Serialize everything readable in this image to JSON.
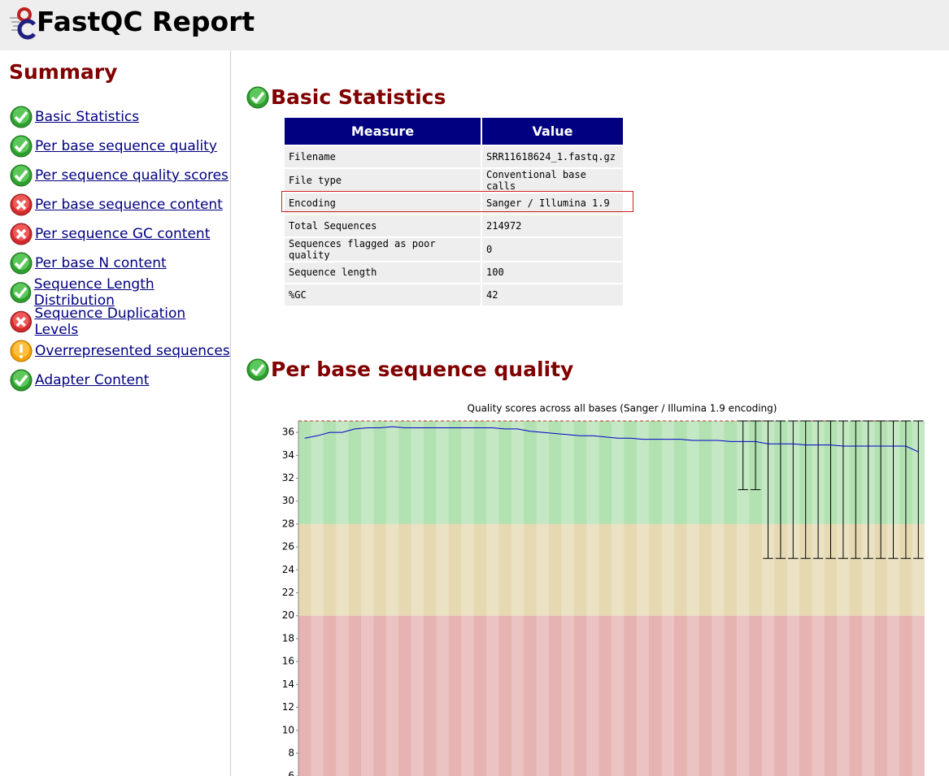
{
  "header": {
    "title": "FastQC Report"
  },
  "summary": {
    "title": "Summary",
    "items": [
      {
        "label": "Basic Statistics",
        "status": "pass"
      },
      {
        "label": "Per base sequence quality",
        "status": "pass"
      },
      {
        "label": "Per sequence quality scores",
        "status": "pass"
      },
      {
        "label": "Per base sequence content",
        "status": "fail"
      },
      {
        "label": "Per sequence GC content",
        "status": "fail"
      },
      {
        "label": "Per base N content",
        "status": "pass"
      },
      {
        "label": "Sequence Length Distribution",
        "status": "pass"
      },
      {
        "label": "Sequence Duplication Levels",
        "status": "fail"
      },
      {
        "label": "Overrepresented sequences",
        "status": "warn"
      },
      {
        "label": "Adapter Content",
        "status": "pass"
      }
    ]
  },
  "basic_statistics": {
    "title": "Basic Statistics",
    "status": "pass",
    "columns": [
      "Measure",
      "Value"
    ],
    "rows": [
      [
        "Filename",
        "SRR11618624_1.fastq.gz"
      ],
      [
        "File type",
        "Conventional base calls"
      ],
      [
        "Encoding",
        "Sanger / Illumina 1.9"
      ],
      [
        "Total Sequences",
        "214972"
      ],
      [
        "Sequences flagged as poor quality",
        "0"
      ],
      [
        "Sequence length",
        "100"
      ],
      [
        "%GC",
        "42"
      ]
    ]
  },
  "quality_section": {
    "title": "Per base sequence quality",
    "status": "pass"
  },
  "chart_data": {
    "type": "boxplot",
    "title": "Quality scores across all bases (Sanger / Illumina 1.9 encoding)",
    "categories": [
      null,
      null,
      null,
      null,
      null,
      null,
      null,
      null,
      null,
      null,
      null,
      null,
      null,
      null,
      null,
      null,
      null,
      null,
      null,
      null,
      null,
      null,
      null,
      null,
      null,
      null,
      null,
      null,
      null,
      null,
      null,
      null,
      null,
      null,
      null,
      null,
      null,
      null,
      null,
      null,
      null,
      null,
      null,
      null,
      null,
      null,
      null,
      null,
      null,
      null
    ],
    "mean": {
      "color": "#0000cc",
      "values": [
        35.5,
        35.7,
        36.0,
        36.0,
        36.3,
        36.4,
        36.4,
        36.5,
        36.4,
        36.4,
        36.4,
        36.4,
        36.4,
        36.4,
        36.4,
        36.4,
        36.3,
        36.3,
        36.1,
        36.0,
        35.9,
        35.8,
        35.7,
        35.7,
        35.6,
        35.5,
        35.5,
        35.4,
        35.4,
        35.4,
        35.4,
        35.3,
        35.3,
        35.3,
        35.2,
        35.2,
        35.2,
        35.0,
        35.0,
        35.0,
        34.9,
        34.9,
        34.9,
        34.8,
        34.8,
        34.8,
        34.8,
        34.8,
        34.8,
        34.3
      ]
    },
    "whisker_low": [
      null,
      null,
      null,
      null,
      null,
      null,
      null,
      null,
      null,
      null,
      null,
      null,
      null,
      null,
      null,
      null,
      null,
      null,
      null,
      null,
      null,
      null,
      null,
      null,
      null,
      null,
      null,
      null,
      null,
      null,
      null,
      null,
      null,
      null,
      null,
      31,
      31,
      25,
      25,
      25,
      25,
      25,
      25,
      25,
      25,
      25,
      25,
      25,
      25,
      25
    ],
    "whisker_high": [
      null,
      null,
      null,
      null,
      null,
      null,
      null,
      null,
      null,
      null,
      null,
      null,
      null,
      null,
      null,
      null,
      null,
      null,
      null,
      null,
      null,
      null,
      null,
      null,
      null,
      null,
      null,
      null,
      null,
      null,
      null,
      null,
      null,
      null,
      null,
      37,
      37,
      37,
      37,
      37,
      37,
      37,
      37,
      37,
      37,
      37,
      37,
      37,
      37,
      37
    ],
    "bands": [
      {
        "from": 28,
        "to": 37,
        "color": "#b2e2b2"
      },
      {
        "from": 20,
        "to": 28,
        "color": "#e6d9b2"
      },
      {
        "from": 5.8,
        "to": 20,
        "color": "#e6b2b2"
      }
    ],
    "ylim": [
      5.8,
      37
    ],
    "yticks": [
      6,
      8,
      10,
      12,
      14,
      16,
      18,
      20,
      22,
      24,
      26,
      28,
      30,
      32,
      34,
      36
    ]
  }
}
